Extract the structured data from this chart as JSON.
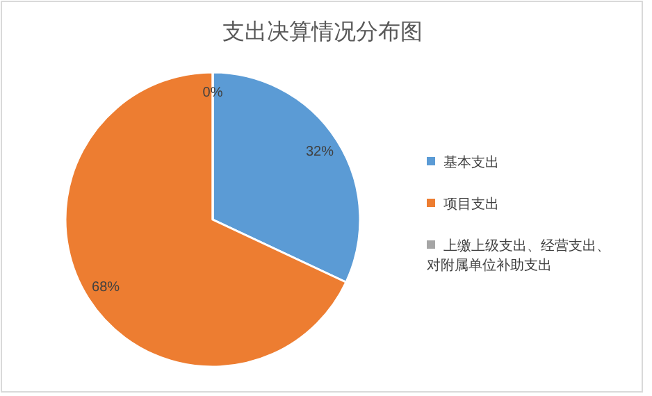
{
  "chart_data": {
    "type": "pie",
    "title": "支出决算情况分布图",
    "categories": [
      "基本支出",
      "项目支出",
      "上缴上级支出、经营支出、对附属单位补助支出"
    ],
    "values": [
      32,
      68,
      0
    ],
    "colors": [
      "#5b9bd5",
      "#ed7d31",
      "#a5a5a5"
    ],
    "value_labels": [
      "32%",
      "68%",
      "0%"
    ],
    "legend": "right"
  }
}
